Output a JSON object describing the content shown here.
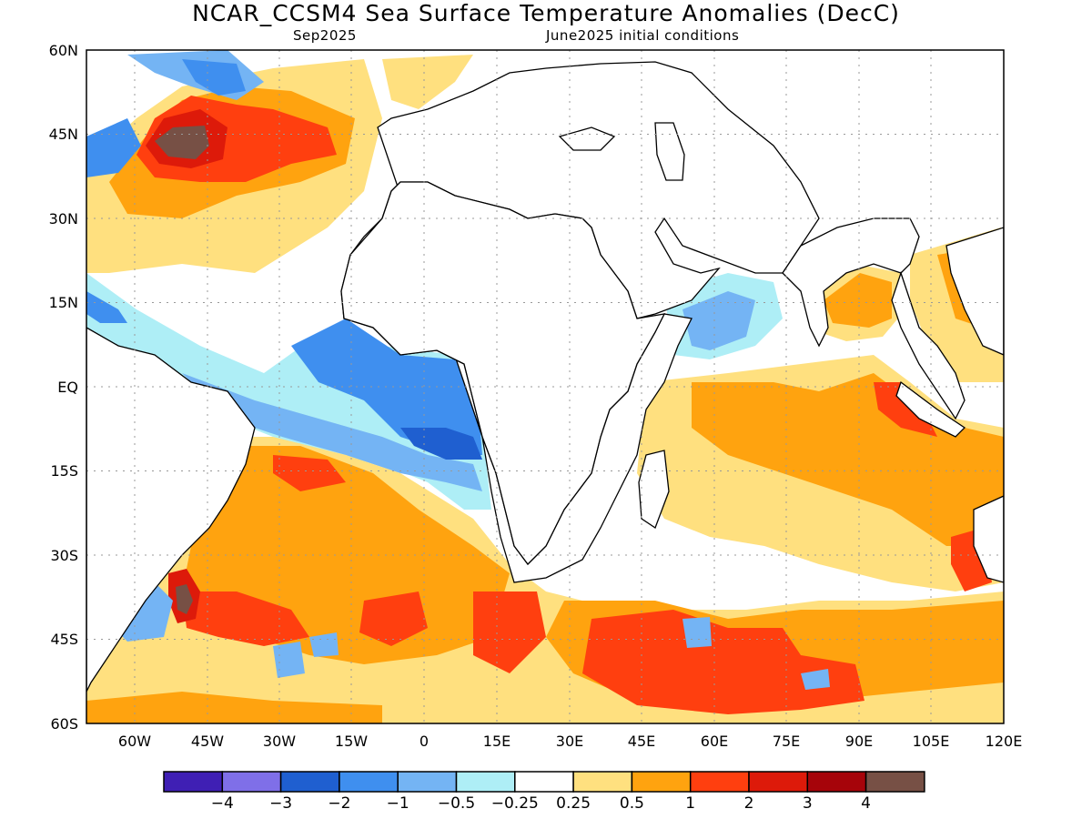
{
  "title": "NCAR_CCSM4 Sea Surface Temperature Anomalies (DecC)",
  "valid_month": "Sep2025",
  "init_conditions": "June2025 initial conditions",
  "lat_labels": [
    "60N",
    "45N",
    "30N",
    "15N",
    "EQ",
    "15S",
    "30S",
    "45S",
    "60S"
  ],
  "lon_labels": [
    "60W",
    "45W",
    "30W",
    "15W",
    "0",
    "15E",
    "30E",
    "45E",
    "60E",
    "75E",
    "90E",
    "105E",
    "120E"
  ],
  "colorbar": {
    "colors": [
      "#3f1fb4",
      "#7f6fe8",
      "#1f5fd0",
      "#3f8fef",
      "#74b4f4",
      "#aeeef6",
      "#ffffff",
      "#ffe07f",
      "#ffa30f",
      "#ff3f0f",
      "#dd1a0a",
      "#a6040a",
      "#775045"
    ],
    "labels": [
      "-4",
      "-3",
      "-2",
      "-1",
      "-0.5",
      "-0.25",
      "0.25",
      "0.5",
      "1",
      "2",
      "3",
      "4"
    ]
  }
}
